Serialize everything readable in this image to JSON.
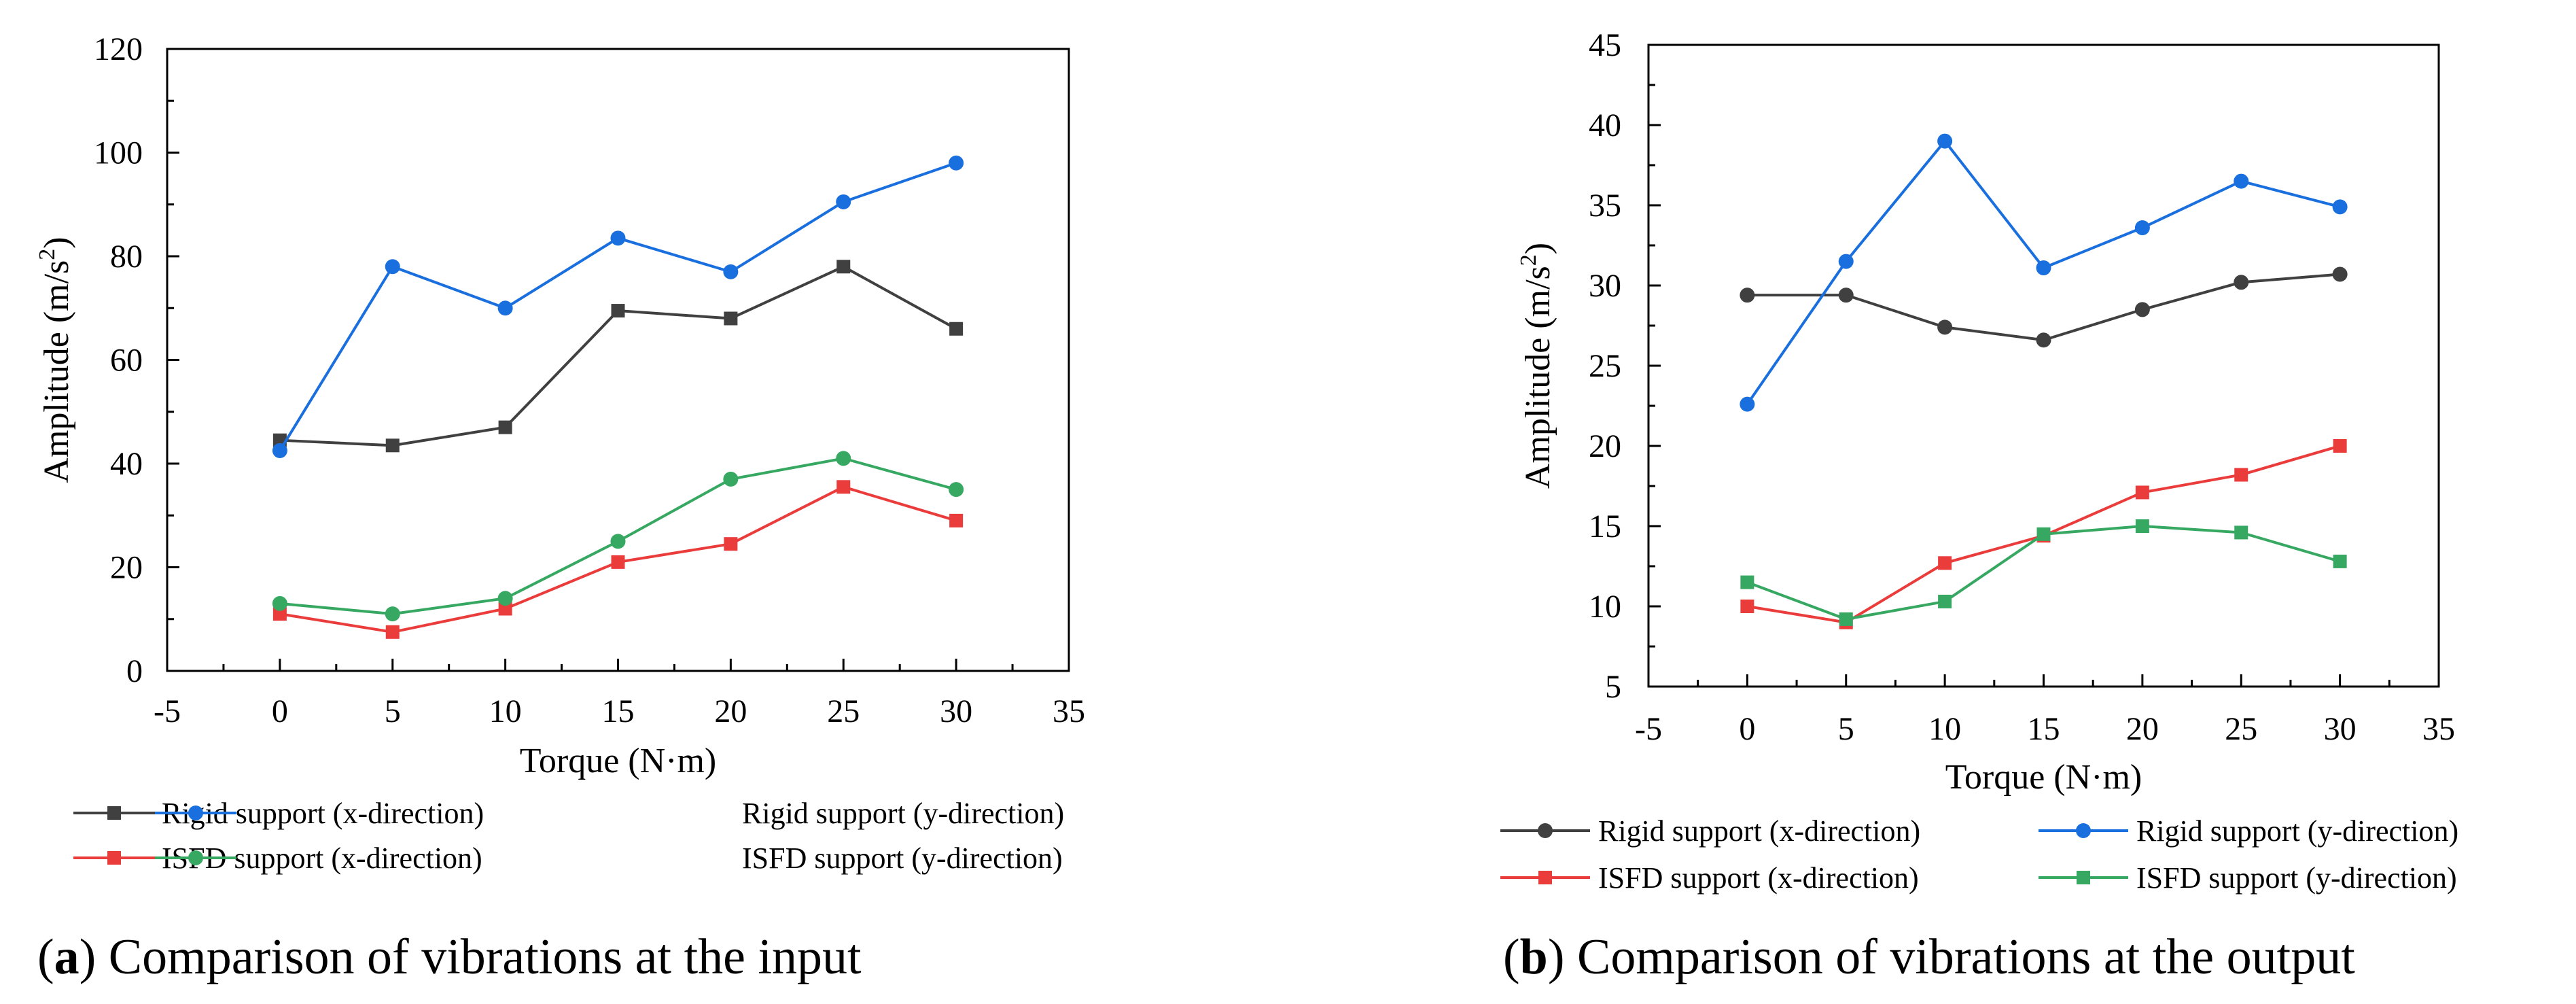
{
  "chart_data": [
    {
      "type": "line",
      "caption": {
        "letter": "a",
        "text": "Comparison of vibrations at the input"
      },
      "xlabel": "Torque (N·m)",
      "ylabel": "Amplitude (m/s",
      "ylabel_superscript": "2",
      "ylabel_close": ")",
      "xlim": [
        -5,
        35
      ],
      "ylim": [
        0,
        120
      ],
      "xticks": [
        -5,
        0,
        5,
        10,
        15,
        20,
        25,
        30,
        35
      ],
      "yticks": [
        0,
        20,
        40,
        60,
        80,
        100,
        120
      ],
      "x": [
        0,
        5,
        10,
        15,
        20,
        25,
        30
      ],
      "legend_position": "bottom",
      "series": [
        {
          "name": "Rigid support (x-direction)",
          "color": "#404040",
          "marker": "square",
          "values": [
            44.5,
            43.5,
            47,
            69.5,
            68,
            78,
            66
          ]
        },
        {
          "name": "Rigid support (y-direction)",
          "color": "#1a6fdf",
          "marker": "circle",
          "values": [
            42.5,
            78,
            70,
            83.5,
            77,
            90.5,
            98
          ]
        },
        {
          "name": "ISFD support (x-direction)",
          "color": "#eb3c3c",
          "marker": "square",
          "values": [
            11,
            7.5,
            12,
            21,
            24.5,
            35.5,
            29
          ]
        },
        {
          "name": "ISFD support (y-direction)",
          "color": "#37a862",
          "marker": "circle",
          "values": [
            13,
            11,
            14,
            25,
            37,
            41,
            35
          ]
        }
      ]
    },
    {
      "type": "line",
      "caption": {
        "letter": "b",
        "text": "Comparison of vibrations at the output"
      },
      "xlabel": "Torque (N·m)",
      "ylabel": "Amplitude (m/s",
      "ylabel_superscript": "2",
      "ylabel_close": ")",
      "xlim": [
        -5,
        35
      ],
      "ylim": [
        5,
        45
      ],
      "xticks": [
        -5,
        0,
        5,
        10,
        15,
        20,
        25,
        30,
        35
      ],
      "yticks": [
        5,
        10,
        15,
        20,
        25,
        30,
        35,
        40,
        45
      ],
      "x": [
        0,
        5,
        10,
        15,
        20,
        25,
        30
      ],
      "legend_position": "bottom",
      "series": [
        {
          "name": "Rigid support (x-direction)",
          "color": "#404040",
          "marker": "circle",
          "values": [
            29.4,
            29.4,
            27.4,
            26.6,
            28.5,
            30.2,
            30.7
          ]
        },
        {
          "name": "Rigid support (y-direction)",
          "color": "#1a6fdf",
          "marker": "circle",
          "values": [
            22.6,
            31.5,
            39,
            31.1,
            33.6,
            36.5,
            34.9
          ]
        },
        {
          "name": "ISFD support (x-direction)",
          "color": "#eb3c3c",
          "marker": "square",
          "values": [
            10,
            9,
            12.7,
            14.4,
            17.1,
            18.2,
            20
          ]
        },
        {
          "name": "ISFD support (y-direction)",
          "color": "#37a862",
          "marker": "square",
          "values": [
            11.5,
            9.2,
            10.3,
            14.5,
            15,
            14.6,
            12.8
          ]
        }
      ]
    }
  ]
}
